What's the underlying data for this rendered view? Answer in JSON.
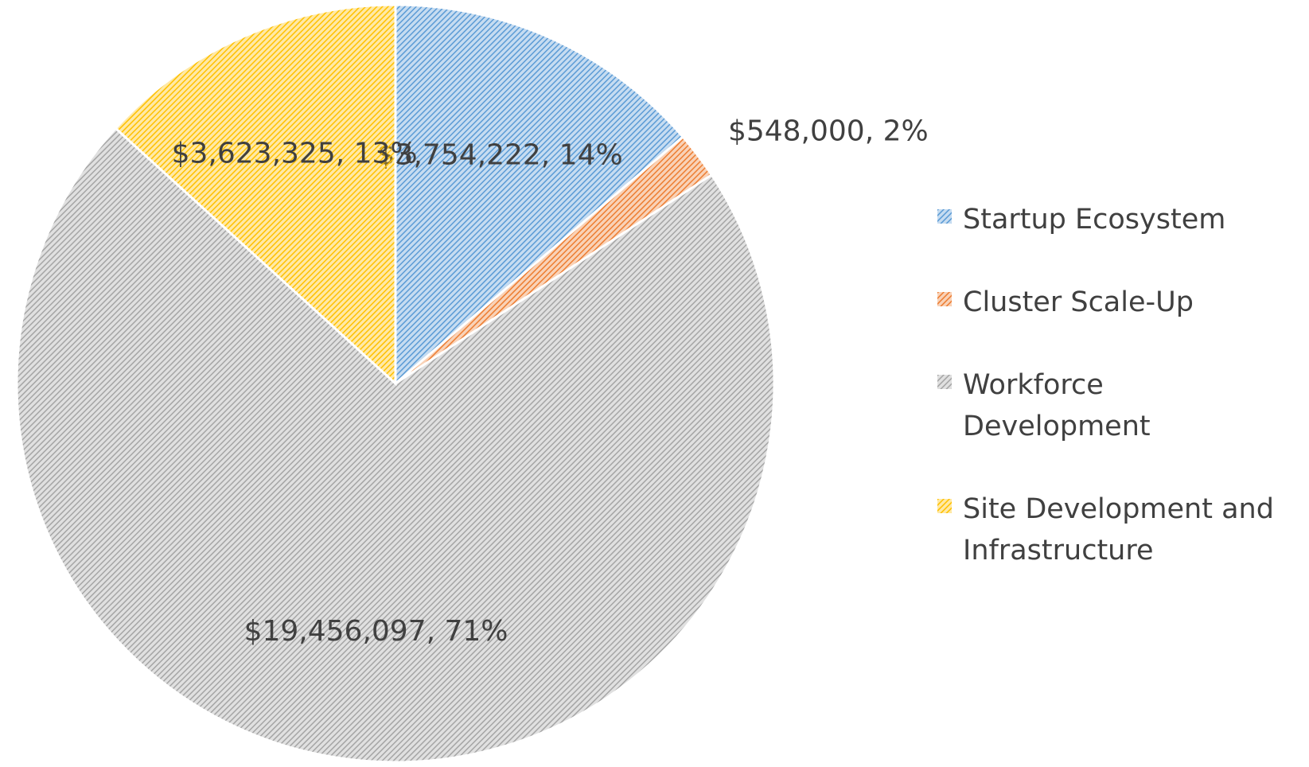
{
  "chart_data": {
    "type": "pie",
    "categories": [
      "Startup Ecosystem",
      "Cluster Scale-Up",
      "Workforce Development",
      "Site Development and Infrastructure"
    ],
    "values": [
      3754222,
      548000,
      19456097,
      3623325
    ],
    "value_labels": [
      "$3,754,222, 14%",
      "$548,000, 2%",
      "$19,456,097, 71%",
      "$3,623,325, 13%"
    ],
    "colors": [
      "#5b9bd5",
      "#ed7d31",
      "#a5a5a5",
      "#ffc000"
    ],
    "legend": "right"
  }
}
